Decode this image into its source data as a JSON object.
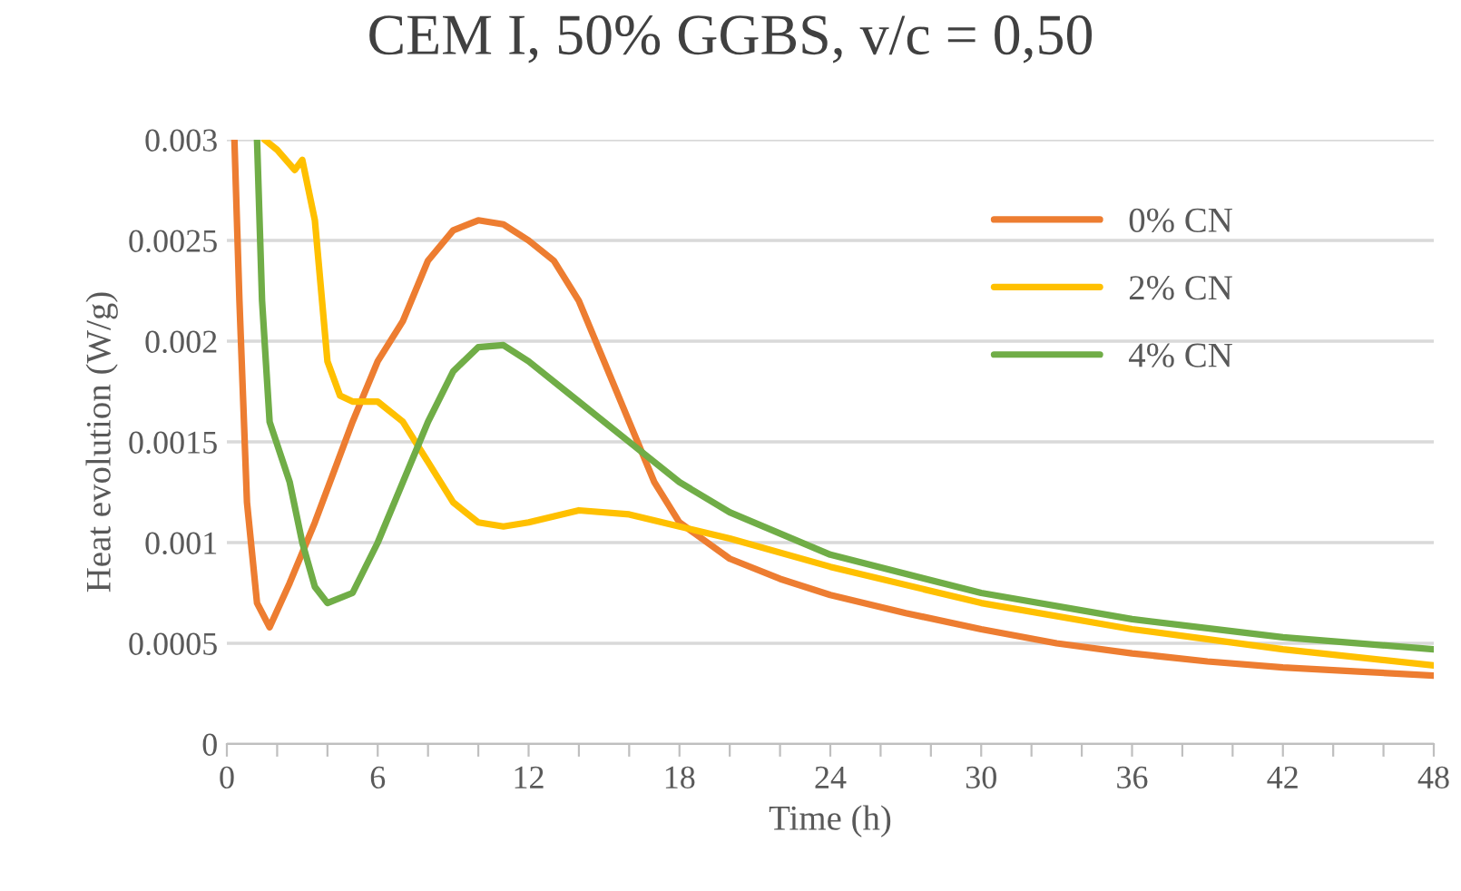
{
  "chart_data": {
    "type": "line",
    "title": "CEM I, 50% GGBS, v/c = 0,50",
    "xlabel": "Time (h)",
    "ylabel": "Heat evolution (W/g)",
    "xlim": [
      0,
      48
    ],
    "ylim": [
      0,
      0.003
    ],
    "xticks": [
      0,
      {
        "value": 2,
        "label": null
      },
      {
        "value": 4,
        "label": null
      },
      6,
      {
        "value": 8,
        "label": null
      },
      {
        "value": 10,
        "label": null
      },
      12,
      {
        "value": 14,
        "label": null
      },
      {
        "value": 16,
        "label": null
      },
      18,
      {
        "value": 20,
        "label": null
      },
      {
        "value": 22,
        "label": null
      },
      24,
      {
        "value": 26,
        "label": null
      },
      {
        "value": 28,
        "label": null
      },
      30,
      {
        "value": 32,
        "label": null
      },
      {
        "value": 34,
        "label": null
      },
      36,
      {
        "value": 38,
        "label": null
      },
      {
        "value": 40,
        "label": null
      },
      42,
      {
        "value": 44,
        "label": null
      },
      {
        "value": 46,
        "label": null
      },
      48
    ],
    "yticks": [
      0,
      0.0005,
      0.001,
      0.0015,
      0.002,
      0.0025,
      0.003
    ],
    "grid": "y",
    "legend": "right",
    "marker": "none",
    "line_style": "solid",
    "series": [
      {
        "name": "0% CN",
        "color": "#ed7d31",
        "x": [
          0.3,
          0.5,
          0.8,
          1.2,
          1.7,
          2.5,
          3.5,
          5,
          6,
          7,
          8,
          9,
          10,
          11,
          12,
          13,
          14,
          15,
          16,
          17,
          18,
          20,
          22,
          24,
          27,
          30,
          33,
          36,
          39,
          42,
          45,
          48
        ],
        "values": [
          0.003,
          0.0022,
          0.0012,
          0.0007,
          0.00058,
          0.0008,
          0.0011,
          0.0016,
          0.0019,
          0.0021,
          0.0024,
          0.00255,
          0.0026,
          0.00258,
          0.0025,
          0.0024,
          0.0022,
          0.0019,
          0.0016,
          0.0013,
          0.0011,
          0.00092,
          0.00082,
          0.00074,
          0.00065,
          0.00057,
          0.0005,
          0.00045,
          0.00041,
          0.00038,
          0.00036,
          0.00034
        ]
      },
      {
        "name": "2% CN",
        "color": "#ffc000",
        "x": [
          1.5,
          2,
          2.7,
          3,
          3.5,
          4,
          4.5,
          5,
          6,
          7,
          8,
          9,
          10,
          11,
          12,
          14,
          16,
          18,
          20,
          24,
          30,
          36,
          42,
          48
        ],
        "values": [
          0.003,
          0.00295,
          0.00285,
          0.0029,
          0.0026,
          0.0019,
          0.00173,
          0.0017,
          0.0017,
          0.0016,
          0.0014,
          0.0012,
          0.0011,
          0.00108,
          0.0011,
          0.00116,
          0.00114,
          0.00108,
          0.00102,
          0.00088,
          0.0007,
          0.00057,
          0.00047,
          0.00039
        ]
      },
      {
        "name": "4% CN",
        "color": "#70ad47",
        "x": [
          1.2,
          1.4,
          1.7,
          2.5,
          3,
          3.5,
          4,
          5,
          6,
          7,
          8,
          9,
          10,
          11,
          12,
          14,
          16,
          18,
          20,
          24,
          30,
          36,
          42,
          48
        ],
        "values": [
          0.003,
          0.0022,
          0.0016,
          0.0013,
          0.001,
          0.00078,
          0.0007,
          0.00075,
          0.001,
          0.0013,
          0.0016,
          0.00185,
          0.00197,
          0.00198,
          0.0019,
          0.0017,
          0.0015,
          0.0013,
          0.00115,
          0.00094,
          0.00075,
          0.00062,
          0.00053,
          0.00047
        ]
      }
    ]
  }
}
